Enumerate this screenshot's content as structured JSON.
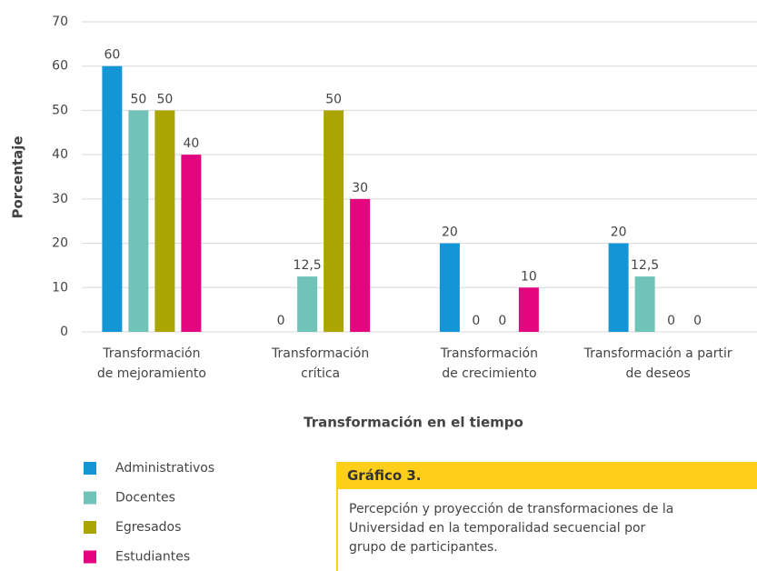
{
  "chart_data": {
    "type": "bar",
    "categories": [
      [
        "Transformación",
        "de mejoramiento"
      ],
      [
        "Transformación",
        "crítica"
      ],
      [
        "Transformación",
        "de crecimiento"
      ],
      [
        "Transformación a partir",
        "de deseos"
      ]
    ],
    "series": [
      {
        "name": "Administrativos",
        "color": "#1496d6",
        "values": [
          60,
          0,
          20,
          20
        ]
      },
      {
        "name": "Docentes",
        "color": "#6fc3b9",
        "values": [
          50,
          12.5,
          0,
          12.5
        ],
        "value_labels": [
          "50",
          "12,5",
          "0",
          "12,5"
        ]
      },
      {
        "name": "Egresados",
        "color": "#aaa500",
        "values": [
          50,
          50,
          0,
          0
        ]
      },
      {
        "name": "Estudiantes",
        "color": "#e4067e",
        "values": [
          40,
          30,
          10,
          0
        ]
      }
    ],
    "ylim": [
      0,
      70
    ],
    "yticks": [
      0,
      10,
      20,
      30,
      40,
      50,
      60,
      70
    ],
    "grid": true,
    "y_label": "Porcentaje",
    "x_label": "Transformación en el tiempo"
  },
  "caption": {
    "title": "Gráfico 3.",
    "text": "Percepción y proyección de transformaciones de la Universidad en la temporalidad secuencial por grupo de participantes."
  }
}
